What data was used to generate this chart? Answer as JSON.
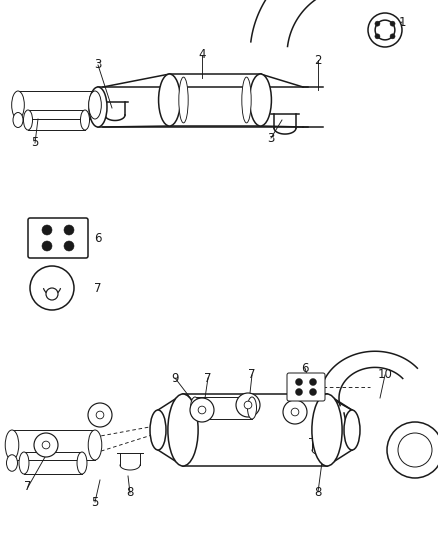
{
  "bg_color": "#ffffff",
  "line_color": "#1a1a1a",
  "lw_main": 1.1,
  "lw_thin": 0.7,
  "label_fs": 8.5
}
